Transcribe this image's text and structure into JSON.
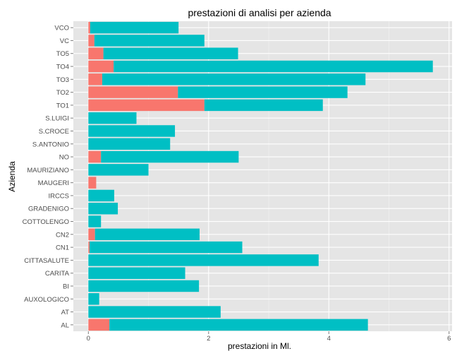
{
  "chart_data": {
    "type": "bar",
    "orientation": "horizontal",
    "stacked": true,
    "title": "prestazioni di analisi per azienda",
    "xlabel": "prestazioni in Ml.",
    "ylabel": "Azienda",
    "xlim": [
      -0.25,
      6.05
    ],
    "x_ticks": [
      0,
      2,
      4,
      6
    ],
    "grid": true,
    "legend": "none",
    "categories": [
      "AL",
      "AT",
      "AUXOLOGICO",
      "BI",
      "CARITA",
      "CITTASALUTE",
      "CN1",
      "CN2",
      "COTTOLENGO",
      "GRADENIGO",
      "IRCCS",
      "MAUGERI",
      "MAURIZIANO",
      "NO",
      "S.ANTONIO",
      "S.CROCE",
      "S.LUIGI",
      "TO1",
      "TO2",
      "TO3",
      "TO4",
      "TO5",
      "VC",
      "VCO"
    ],
    "series": [
      {
        "color": "#F8766D",
        "values": [
          0.35,
          0,
          0,
          0,
          0,
          0,
          0.02,
          0.11,
          0,
          0,
          0,
          0.13,
          0,
          0.21,
          0,
          0,
          0,
          1.93,
          1.49,
          0.23,
          0.42,
          0.25,
          0.1,
          0.03
        ]
      },
      {
        "color": "#00BFC4",
        "values": [
          4.3,
          2.2,
          0.18,
          1.84,
          1.61,
          3.83,
          2.54,
          1.74,
          0.21,
          0.49,
          0.43,
          0,
          1.0,
          2.29,
          1.36,
          1.44,
          0.8,
          1.97,
          2.82,
          4.38,
          5.31,
          2.24,
          1.83,
          1.47
        ]
      }
    ]
  }
}
